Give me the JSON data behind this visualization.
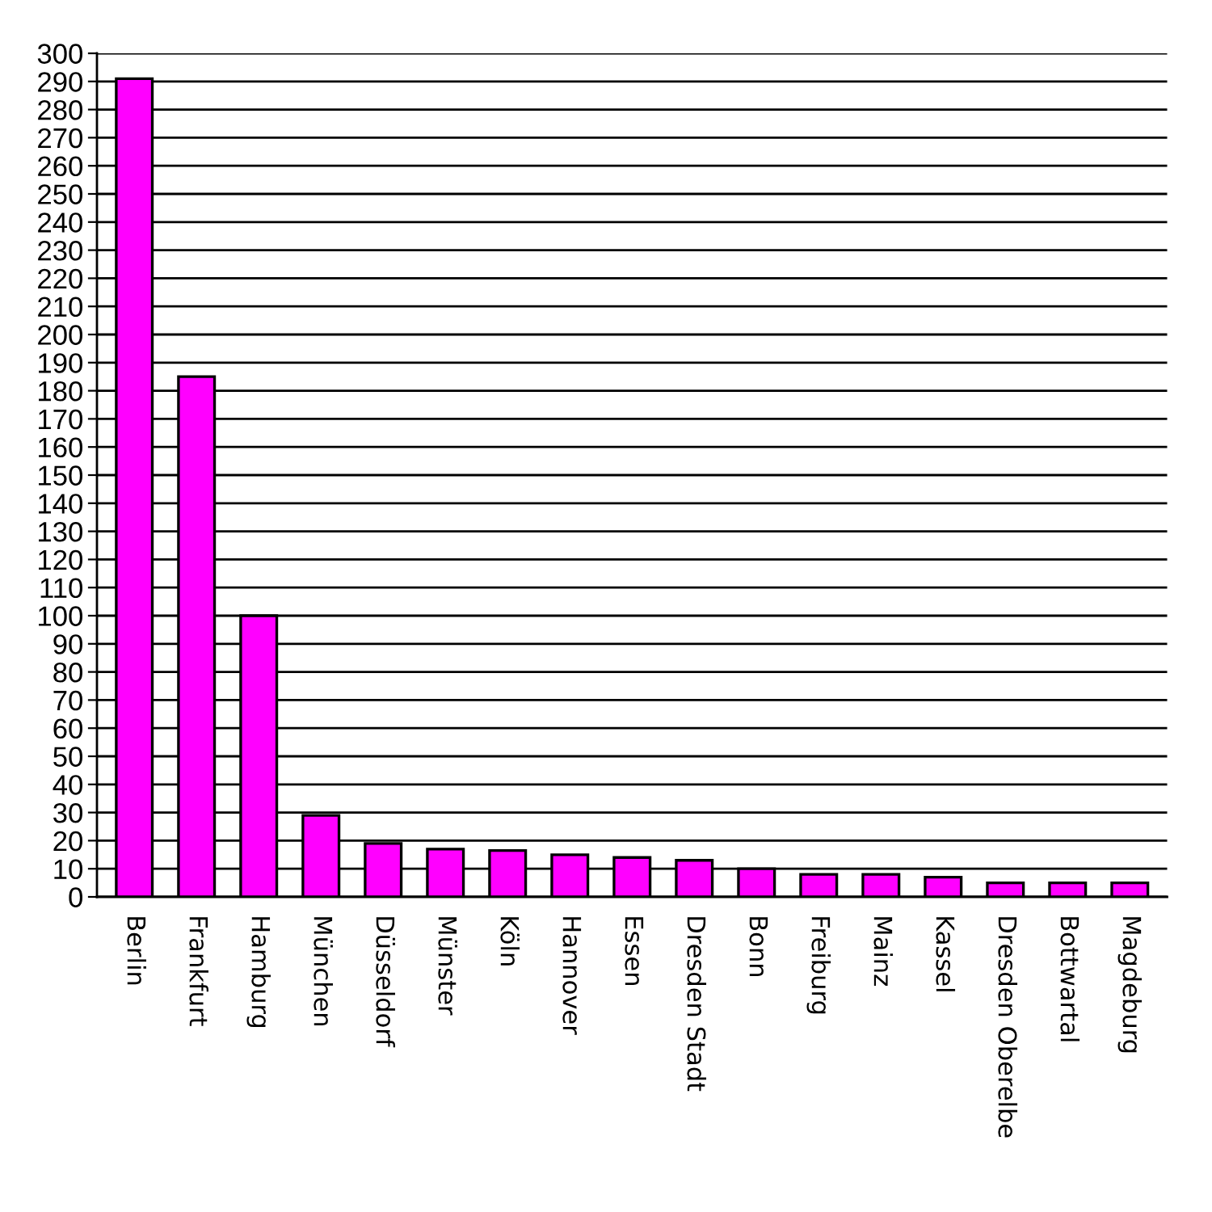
{
  "chart_data": {
    "type": "bar",
    "categories": [
      "Berlin",
      "Frankfurt",
      "Hamburg",
      "München",
      "Düsseldorf",
      "Münster",
      "Köln",
      "Hannover",
      "Essen",
      "Dresden Stadt",
      "Bonn",
      "Freiburg",
      "Mainz",
      "Kassel",
      "Dresden Oberelbe",
      "Bottwartal",
      "Magdeburg"
    ],
    "values": [
      291,
      185,
      100,
      29,
      19,
      17,
      16.5,
      15,
      14,
      13,
      10,
      8,
      8,
      7,
      5,
      5,
      5
    ],
    "color": "#ff00ff",
    "ylim": [
      0,
      300
    ],
    "yticks": [
      0,
      10,
      20,
      30,
      40,
      50,
      60,
      70,
      80,
      90,
      100,
      110,
      120,
      130,
      140,
      150,
      160,
      170,
      180,
      190,
      200,
      210,
      220,
      230,
      240,
      250,
      260,
      270,
      280,
      290,
      300
    ],
    "grid": "y"
  }
}
